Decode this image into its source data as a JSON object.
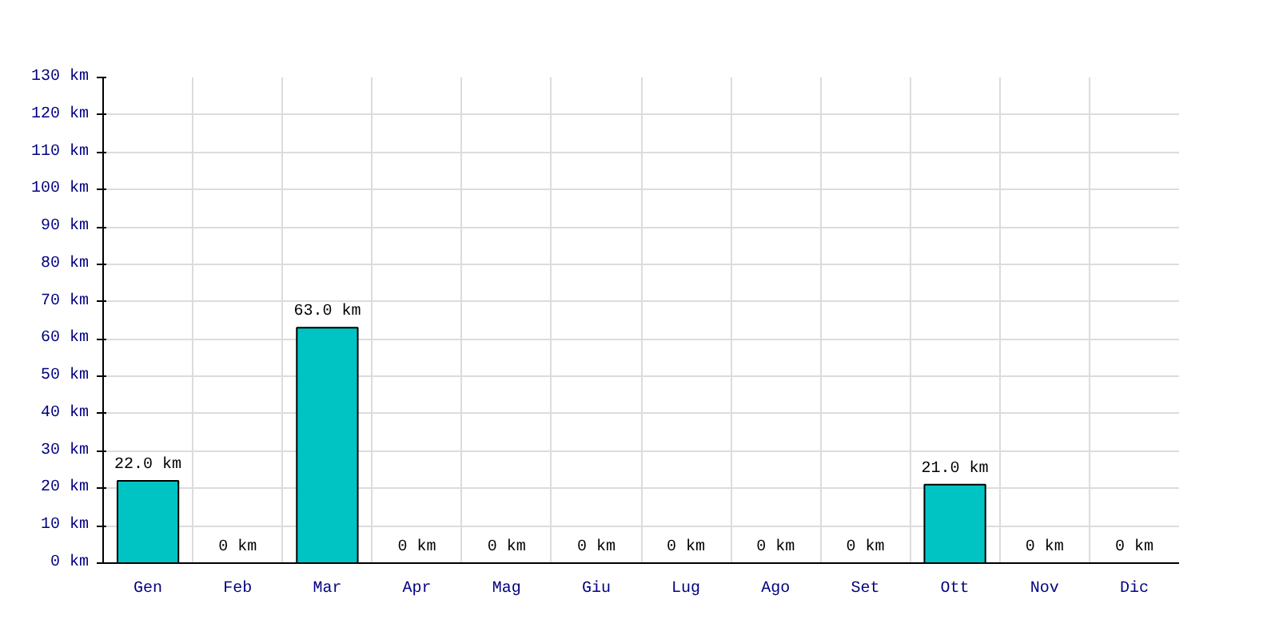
{
  "chart_data": {
    "type": "bar",
    "categories": [
      "Gen",
      "Feb",
      "Mar",
      "Apr",
      "Mag",
      "Giu",
      "Lug",
      "Ago",
      "Set",
      "Ott",
      "Nov",
      "Dic"
    ],
    "values": [
      22,
      0,
      63,
      0,
      0,
      0,
      0,
      0,
      0,
      21,
      0,
      0
    ],
    "value_labels": [
      "22.0 km",
      "0 km",
      "63.0 km",
      "0 km",
      "0 km",
      "0 km",
      "0 km",
      "0 km",
      "0 km",
      "21.0 km",
      "0 km",
      "0 km"
    ],
    "color": "#00c4c4",
    "ylim": [
      0,
      130
    ],
    "yticks": [
      {
        "value": 0,
        "label": "0 km"
      },
      {
        "value": 10,
        "label": "10 km"
      },
      {
        "value": 20,
        "label": "20 km"
      },
      {
        "value": 30,
        "label": "30 km"
      },
      {
        "value": 40,
        "label": "40 km"
      },
      {
        "value": 50,
        "label": "50 km"
      },
      {
        "value": 60,
        "label": "60 km"
      },
      {
        "value": 70,
        "label": "70 km"
      },
      {
        "value": 80,
        "label": "80 km"
      },
      {
        "value": 90,
        "label": "90 km"
      },
      {
        "value": 100,
        "label": "100 km"
      },
      {
        "value": 110,
        "label": "110 km"
      },
      {
        "value": 120,
        "label": "120 km"
      },
      {
        "value": 130,
        "label": "130 km"
      }
    ],
    "grid": true
  }
}
